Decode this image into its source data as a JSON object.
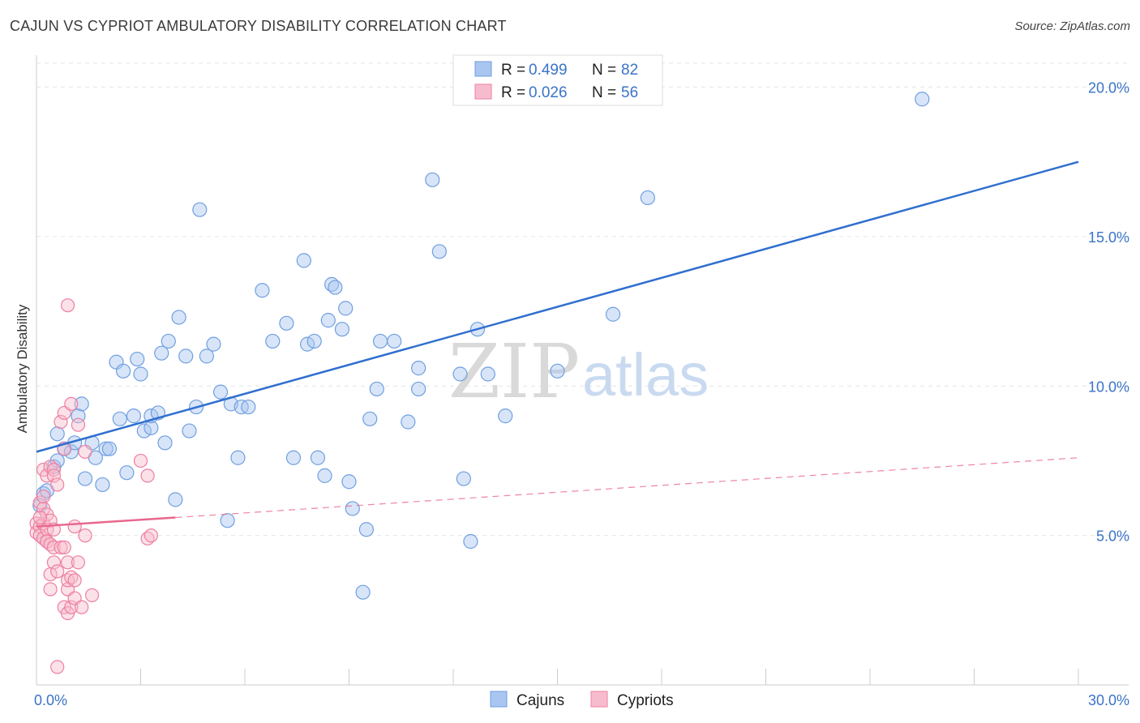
{
  "header": {
    "title": "CAJUN VS CYPRIOT AMBULATORY DISABILITY CORRELATION CHART",
    "source": "Source: ZipAtlas.com"
  },
  "watermark": {
    "zip": "ZIP",
    "atlas": "atlas"
  },
  "legend": {
    "rows": [
      {
        "r_label": "R =",
        "r_value": "0.499",
        "n_label": "N =",
        "n_value": "82"
      },
      {
        "r_label": "R =",
        "r_value": "0.026",
        "n_label": "N =",
        "n_value": "56"
      }
    ]
  },
  "chart_data": {
    "type": "scatter",
    "title": "CAJUN VS CYPRIOT AMBULATORY DISABILITY CORRELATION CHART",
    "xlabel": "",
    "ylabel": "Ambulatory Disability",
    "xlim": [
      0,
      30
    ],
    "ylim": [
      0,
      20.8
    ],
    "x_tick_labels": [
      "0.0%",
      "30.0%"
    ],
    "y_ticks": [
      5,
      10,
      15,
      20
    ],
    "y_tick_labels": [
      "5.0%",
      "10.0%",
      "15.0%",
      "20.0%"
    ],
    "colors": {
      "cajuns": "#6f9fe0",
      "cajuns_fill": "#a9c6f0",
      "cajuns_line": "#2f6fcf",
      "cypriots": "#ee7fa2",
      "cypriots_fill": "#f6bccd",
      "cypriots_line": "#e8678e"
    },
    "series": [
      {
        "name": "Cajuns",
        "r": 0.499,
        "n": 82,
        "trend": {
          "x": [
            0,
            30
          ],
          "y": [
            7.8,
            17.5
          ]
        },
        "points": [
          [
            0.2,
            6.4
          ],
          [
            0.5,
            7.3
          ],
          [
            0.6,
            8.4
          ],
          [
            0.6,
            7.5
          ],
          [
            0.8,
            7.9
          ],
          [
            1.0,
            7.8
          ],
          [
            1.1,
            8.1
          ],
          [
            1.2,
            9.0
          ],
          [
            1.3,
            9.4
          ],
          [
            1.4,
            6.9
          ],
          [
            1.6,
            8.1
          ],
          [
            1.7,
            7.6
          ],
          [
            1.9,
            6.7
          ],
          [
            2.0,
            7.9
          ],
          [
            2.1,
            7.9
          ],
          [
            2.3,
            10.8
          ],
          [
            2.4,
            8.9
          ],
          [
            2.5,
            10.5
          ],
          [
            2.6,
            7.1
          ],
          [
            2.8,
            9.0
          ],
          [
            2.9,
            10.9
          ],
          [
            3.0,
            10.4
          ],
          [
            3.1,
            8.5
          ],
          [
            3.3,
            8.6
          ],
          [
            3.3,
            9.0
          ],
          [
            3.5,
            9.1
          ],
          [
            3.6,
            11.1
          ],
          [
            3.7,
            8.1
          ],
          [
            3.8,
            11.5
          ],
          [
            4.0,
            6.2
          ],
          [
            4.1,
            12.3
          ],
          [
            4.3,
            11.0
          ],
          [
            4.4,
            8.5
          ],
          [
            4.6,
            9.3
          ],
          [
            4.7,
            15.9
          ],
          [
            4.9,
            11.0
          ],
          [
            5.1,
            11.4
          ],
          [
            5.3,
            9.8
          ],
          [
            5.5,
            5.5
          ],
          [
            5.6,
            9.4
          ],
          [
            5.8,
            7.6
          ],
          [
            5.9,
            9.3
          ],
          [
            6.1,
            9.3
          ],
          [
            6.5,
            13.2
          ],
          [
            6.8,
            11.5
          ],
          [
            7.2,
            12.1
          ],
          [
            7.4,
            7.6
          ],
          [
            7.7,
            14.2
          ],
          [
            7.8,
            11.4
          ],
          [
            8.0,
            11.5
          ],
          [
            8.1,
            7.6
          ],
          [
            8.3,
            7.0
          ],
          [
            8.4,
            12.2
          ],
          [
            8.5,
            13.4
          ],
          [
            8.6,
            13.3
          ],
          [
            8.8,
            11.9
          ],
          [
            8.9,
            12.6
          ],
          [
            9.0,
            6.8
          ],
          [
            9.1,
            5.9
          ],
          [
            9.4,
            3.1
          ],
          [
            9.5,
            5.2
          ],
          [
            9.6,
            8.9
          ],
          [
            9.8,
            9.9
          ],
          [
            9.9,
            11.5
          ],
          [
            10.3,
            11.5
          ],
          [
            10.7,
            8.8
          ],
          [
            11.0,
            10.6
          ],
          [
            11.0,
            9.9
          ],
          [
            11.4,
            16.9
          ],
          [
            11.6,
            14.5
          ],
          [
            12.2,
            10.4
          ],
          [
            12.3,
            6.9
          ],
          [
            12.5,
            4.8
          ],
          [
            12.7,
            11.9
          ],
          [
            13.0,
            10.4
          ],
          [
            13.5,
            9.0
          ],
          [
            15.0,
            10.5
          ],
          [
            16.6,
            12.4
          ],
          [
            17.6,
            16.3
          ],
          [
            25.5,
            19.6
          ],
          [
            0.1,
            6.0
          ],
          [
            0.3,
            6.5
          ]
        ]
      },
      {
        "name": "Cypriots",
        "r": 0.026,
        "n": 56,
        "trend": {
          "x": [
            0,
            4
          ],
          "y": [
            5.3,
            5.6
          ]
        },
        "trend_ext": {
          "x": [
            4,
            30
          ],
          "y": [
            5.6,
            7.6
          ]
        },
        "points": [
          [
            0.0,
            5.4
          ],
          [
            0.0,
            5.1
          ],
          [
            0.1,
            6.1
          ],
          [
            0.1,
            5.3
          ],
          [
            0.1,
            5.0
          ],
          [
            0.2,
            7.2
          ],
          [
            0.2,
            5.9
          ],
          [
            0.2,
            5.4
          ],
          [
            0.2,
            4.9
          ],
          [
            0.3,
            7.0
          ],
          [
            0.3,
            5.7
          ],
          [
            0.3,
            5.2
          ],
          [
            0.3,
            4.8
          ],
          [
            0.3,
            4.8
          ],
          [
            0.4,
            7.3
          ],
          [
            0.4,
            5.5
          ],
          [
            0.4,
            4.7
          ],
          [
            0.4,
            3.7
          ],
          [
            0.4,
            3.2
          ],
          [
            0.5,
            7.2
          ],
          [
            0.5,
            7.0
          ],
          [
            0.5,
            5.2
          ],
          [
            0.5,
            4.6
          ],
          [
            0.5,
            4.1
          ],
          [
            0.6,
            6.7
          ],
          [
            0.6,
            3.8
          ],
          [
            0.6,
            0.6
          ],
          [
            0.7,
            8.8
          ],
          [
            0.7,
            4.6
          ],
          [
            0.8,
            9.1
          ],
          [
            0.8,
            7.9
          ],
          [
            0.8,
            4.6
          ],
          [
            0.8,
            2.6
          ],
          [
            0.9,
            12.7
          ],
          [
            0.9,
            4.1
          ],
          [
            0.9,
            3.2
          ],
          [
            0.9,
            2.4
          ],
          [
            0.9,
            3.5
          ],
          [
            1.0,
            9.4
          ],
          [
            1.0,
            3.6
          ],
          [
            1.0,
            2.6
          ],
          [
            1.1,
            3.5
          ],
          [
            1.1,
            2.9
          ],
          [
            1.1,
            5.3
          ],
          [
            1.2,
            8.7
          ],
          [
            1.2,
            4.1
          ],
          [
            1.3,
            2.6
          ],
          [
            1.4,
            7.8
          ],
          [
            1.4,
            5.0
          ],
          [
            1.6,
            3.0
          ],
          [
            3.0,
            7.5
          ],
          [
            3.2,
            7.0
          ],
          [
            3.2,
            4.9
          ],
          [
            3.3,
            5.0
          ],
          [
            0.1,
            5.6
          ],
          [
            0.2,
            6.3
          ]
        ]
      }
    ],
    "legend": [
      "Cajuns",
      "Cypriots"
    ]
  }
}
